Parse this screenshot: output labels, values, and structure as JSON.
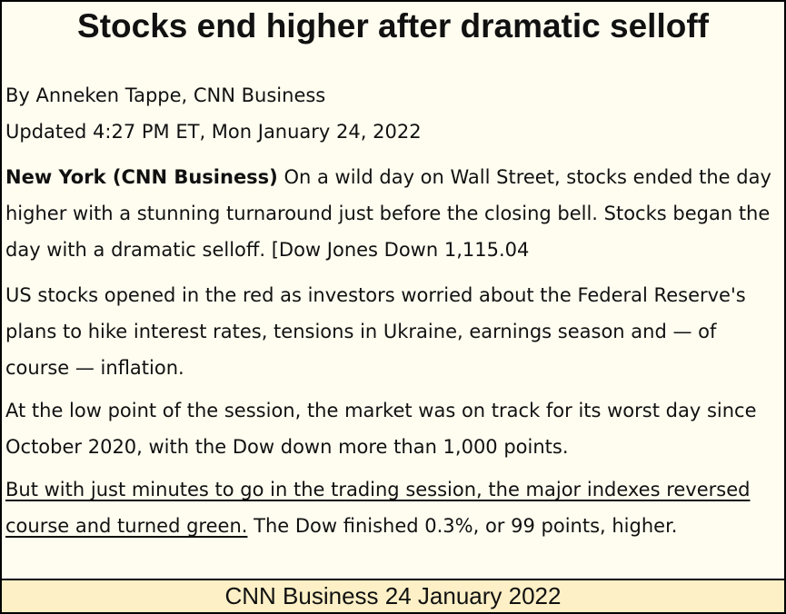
{
  "article": {
    "headline": "Stocks end higher after dramatic selloff",
    "byline": "By Anneken Tappe, CNN Business",
    "updated": "Updated 4:27 PM ET, Mon January 24, 2022",
    "paragraphs": [
      {
        "dateline": "New York (CNN Business)",
        "text": " On a wild day on Wall Street, stocks ended the day higher with a stunning turnaround just before the closing bell. Stocks began the day with a dramatic selloff.  [Dow Jones Down 1,115.04"
      },
      {
        "text": "US stocks opened in the red as investors worried about the Federal Reserve's plans to hike interest rates, tensions in Ukraine, earnings season and — of course — inflation."
      },
      {
        "text": "At the low point of the session, the market was on track for its worst day since October 2020, with the Dow down more than 1,000 points."
      },
      {
        "underlined": "But with just minutes to go in the trading session, the major indexes reversed course and turned green.",
        "text": " The Dow finished 0.3%, or 99 points, higher."
      }
    ]
  },
  "footer": {
    "caption": "CNN Business 24 January 2022"
  }
}
